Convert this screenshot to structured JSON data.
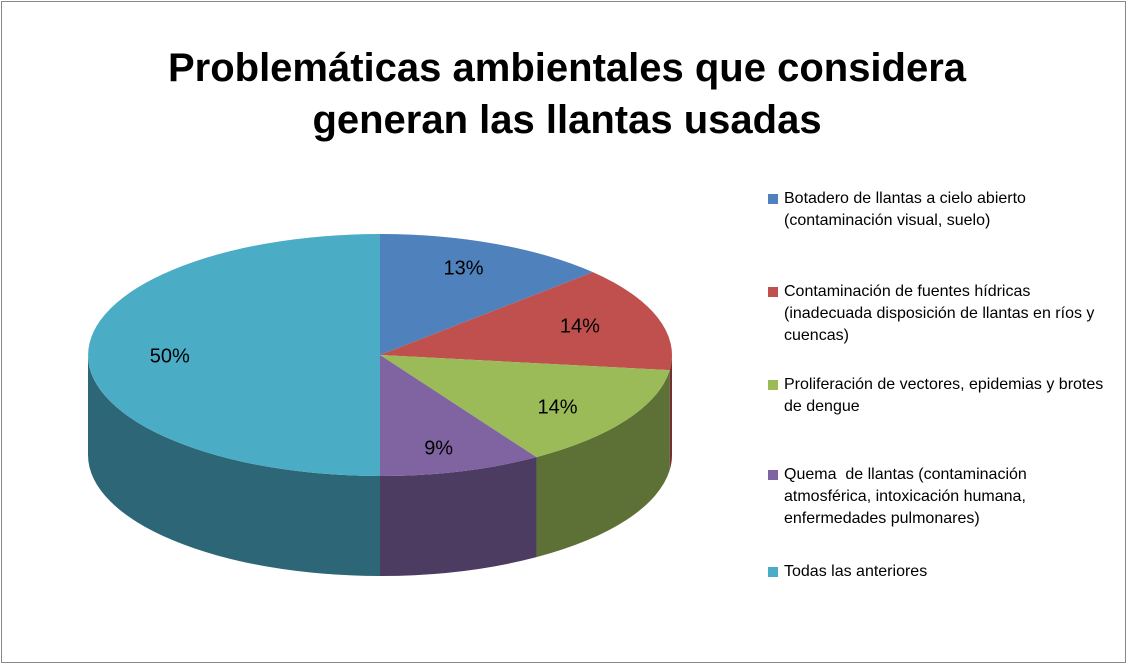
{
  "chart_data": {
    "type": "pie",
    "title": "Problemáticas ambientales que considera generan las llantas usadas",
    "categories": [
      "Botadero de llantas a cielo abierto (contaminación visual, suelo)",
      "Contaminación de fuentes hídricas (inadecuada disposición de llantas en ríos y cuencas)",
      "Proliferación de vectores, epidemias y brotes de dengue",
      "Quema  de llantas (contaminación atmosférica, intoxicación humana, enfermedades pulmonares)",
      "Todas las anteriores"
    ],
    "values": [
      13,
      14,
      14,
      9,
      50
    ],
    "value_labels": [
      "13%",
      "14%",
      "14%",
      "9%",
      "50%"
    ],
    "colors": [
      "#4f81bd",
      "#c0504d",
      "#9bbb59",
      "#8064a2",
      "#4bacc6"
    ],
    "legend": "right"
  }
}
